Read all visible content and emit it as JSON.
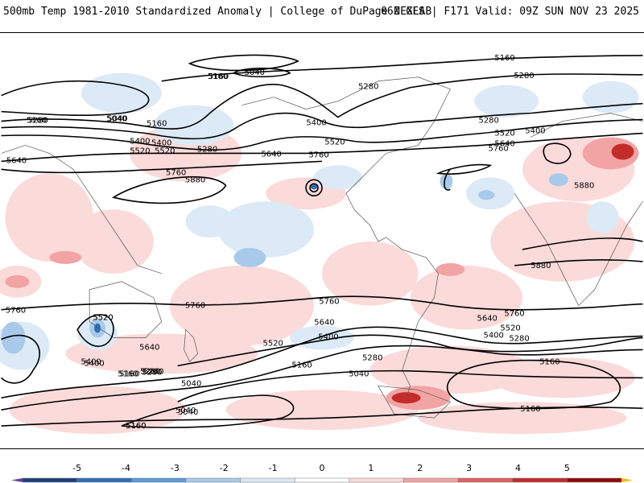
{
  "header": {
    "title": "500mb Temp 1981-2010 Standardized Anomaly | College of DuPage NEXLAB",
    "run_info": "06Z GFS | F171 Valid: 09Z SUN NOV 23 2025"
  },
  "colorbar": {
    "ticks": [
      "-5",
      "-4",
      "-3",
      "-2",
      "-1",
      "0",
      "1",
      "2",
      "3",
      "4",
      "5"
    ],
    "colors": [
      "#6a3fa0",
      "#1f3f7a",
      "#2f6fb5",
      "#5a9bd5",
      "#a9c9ea",
      "#dce9f6",
      "#ffffff",
      "#fbdada",
      "#f2a3a3",
      "#e06060",
      "#c42b2b",
      "#8f0b0b",
      "#f0b800"
    ]
  },
  "contour_labels": [
    "5160",
    "5040",
    "5280",
    "5160",
    "5280",
    "5040",
    "5400",
    "5160",
    "5520",
    "5400",
    "5280",
    "5520",
    "5160",
    "5640",
    "5760",
    "5400",
    "5520",
    "5640",
    "5760",
    "5880",
    "5280",
    "5400",
    "5520",
    "5640",
    "5760",
    "5280",
    "5040",
    "5160",
    "5880",
    "5880",
    "5760",
    "5520",
    "5640",
    "5760",
    "5760",
    "5640",
    "5520",
    "5400",
    "5280",
    "5640",
    "5760",
    "5520",
    "5400",
    "5280",
    "5160",
    "5040",
    "5280",
    "5160",
    "5040",
    "5160",
    "5040",
    "5160",
    "5400",
    "5160",
    "5280",
    "5520",
    "5400",
    "5280",
    "5160",
    "5160",
    "5040"
  ]
}
